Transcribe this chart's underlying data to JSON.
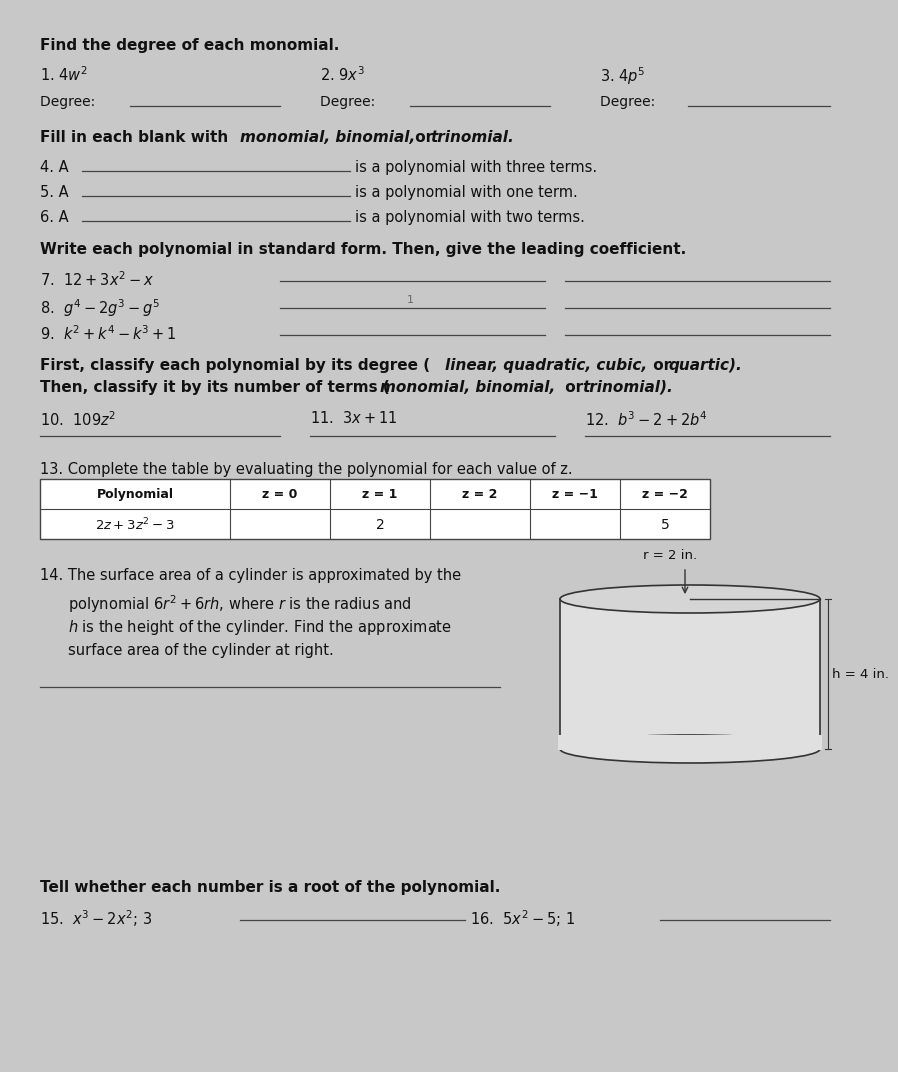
{
  "bg_color": "#c8c8c8",
  "text_color": "#111111",
  "line_color": "#444444",
  "sections": {
    "s1_header": "Find the degree of each monomial.",
    "s1_q1": "1. $4w^{2}$",
    "s1_q2": "2. $9x^{3}$",
    "s1_q3": "3. $4p^{5}$",
    "s2_header_plain": "Fill in each blank with ",
    "s2_header_italic": "monomial, binomial,",
    "s2_header_or": " or ",
    "s2_header_italic2": "trinomial.",
    "s2_q4_prefix": "4. A",
    "s2_q4_suffix": "is a polynomial with three terms.",
    "s2_q5_prefix": "5. A",
    "s2_q5_suffix": "is a polynomial with one term.",
    "s2_q6_prefix": "6. A",
    "s2_q6_suffix": "is a polynomial with two terms.",
    "s3_header": "Write each polynomial in standard form. Then, give the leading coefficient.",
    "s3_q7": "7.  $12 + 3x^{2} - x$",
    "s3_q8": "8.  $g^{4} - 2g^{3} - g^{5}$",
    "s3_q9": "9.  $k^{2} + k^{4} - k^{3} + 1$",
    "s4_header1_plain": "First, classify each polynomial by its degree (",
    "s4_header1_italic": "linear, quadratic, cubic,",
    "s4_header1_or": " or ",
    "s4_header1_italic2": "quartic).",
    "s4_header2_plain": "Then, classify it by its number of terms (",
    "s4_header2_italic": "monomial, binomial,",
    "s4_header2_or": " or ",
    "s4_header2_italic2": "trinomial).",
    "s4_q10": "10.  $109z^{2}$",
    "s4_q11": "11.  $3x + 11$",
    "s4_q12": "12.  $b^{3} - 2 + 2b^{4}$",
    "s5_header": "13. Complete the table by evaluating the polynomial for each value of z.",
    "s5_col_headers": [
      "Polynomial",
      "z = 0",
      "z = 1",
      "z = 2",
      "z = −1",
      "z = −2"
    ],
    "s5_row_poly": "$2z + 3z^{2} - 3$",
    "s5_row_vals": [
      "",
      "2",
      "",
      "",
      "5"
    ],
    "s6_q14_line1": "14. The surface area of a cylinder is approximated by the",
    "s6_q14_line2": "polynomial $6r^{2} + 6rh$, where $r$ is the radius and",
    "s6_q14_line3": "$h$ is the height of the cylinder. Find the approximate",
    "s6_q14_line4": "surface area of the cylinder at right.",
    "s6_r_label": "r = 2 in.",
    "s6_h_label": "h = 4 in.",
    "s7_header": "Tell whether each number is a root of the polynomial.",
    "s7_q15": "15.  $x^{3} - 2x^{2}$; 3",
    "s7_q16": "16.  $5x^{2} - 5$; 1"
  }
}
